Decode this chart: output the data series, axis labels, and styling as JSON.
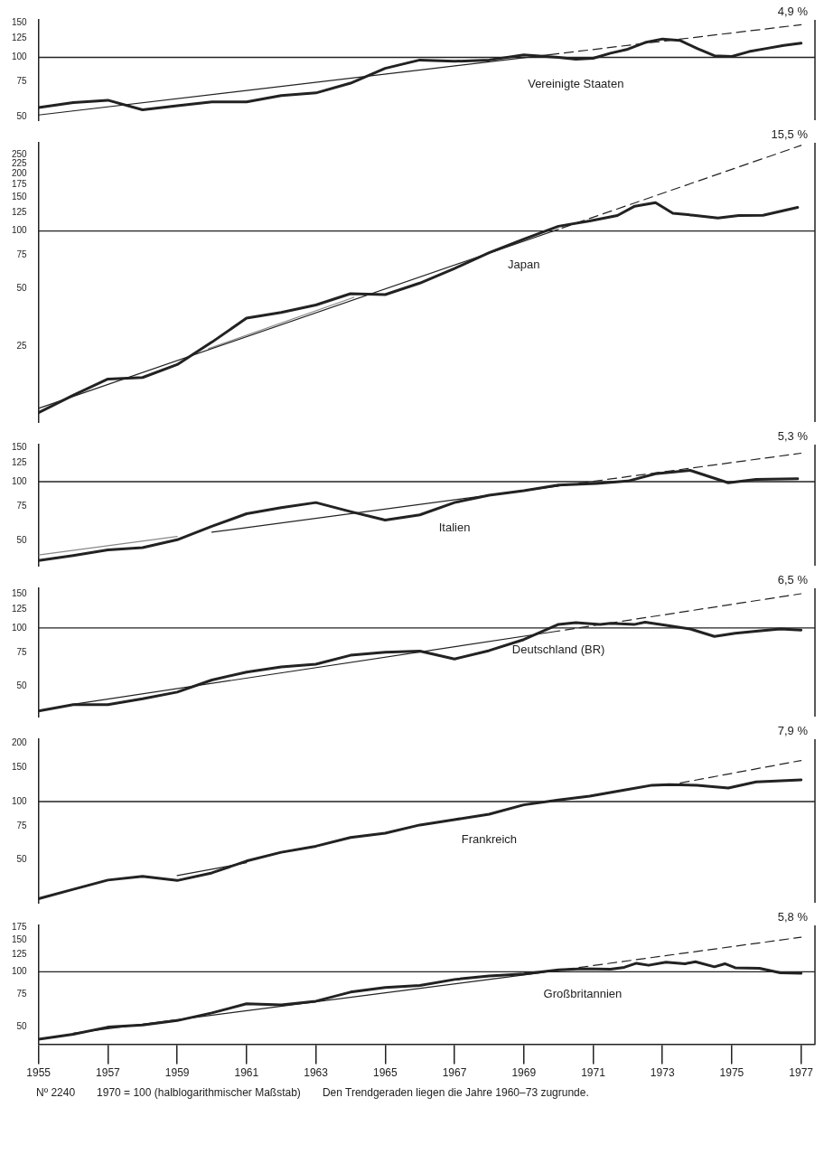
{
  "chart_data": [
    {
      "type": "line",
      "log": true,
      "tick_labels": "y",
      "xlim": [
        1955,
        1977.4
      ],
      "ylim": [
        48,
        155
      ],
      "yticks": [
        50,
        75,
        100,
        125,
        150
      ],
      "ref_lines": [
        {
          "axis": "y",
          "value": 100,
          "color": "#222222"
        }
      ],
      "annotations": [
        "4,9 %"
      ],
      "series": [
        {
          "name": "Vereinigte Staaten",
          "color": "#222222",
          "x": [
            1955,
            1956,
            1957,
            1958,
            1959,
            1960,
            1961,
            1962,
            1963,
            1964,
            1965,
            1966,
            1967,
            1968,
            1969,
            1970,
            1970.5,
            1971,
            1971.5,
            1972,
            1972.5,
            1973,
            1973.5,
            1974,
            1974.5,
            1975,
            1975.5,
            1976,
            1976.5,
            1977
          ],
          "values": [
            55.6,
            59,
            60.6,
            54.2,
            56.8,
            59.5,
            59.5,
            64,
            66,
            74,
            88,
            97,
            95.5,
            97,
            103,
            100,
            98,
            99,
            105,
            110,
            119,
            124,
            122,
            111,
            102,
            101,
            107,
            111,
            115,
            118
          ]
        },
        {
          "color": "#222222",
          "line_style": "solid",
          "x": [
            1955,
            1970
          ],
          "values": [
            51,
            104.5
          ]
        },
        {
          "color": "#222222",
          "line_style": "dashed",
          "x": [
            1970,
            1977
          ],
          "values": [
            104.5,
            146.5
          ]
        }
      ]
    },
    {
      "type": "line",
      "log": true,
      "tick_labels": "y",
      "xlim": [
        1955,
        1977.4
      ],
      "ylim": [
        10,
        290
      ],
      "yticks": [
        25,
        50,
        75,
        100,
        125,
        150,
        175,
        200,
        225,
        250
      ],
      "ref_lines": [
        {
          "axis": "y",
          "value": 100,
          "color": "#222222"
        }
      ],
      "annotations": [
        "15,5 %"
      ],
      "series": [
        {
          "name": "Japan",
          "color": "#222222",
          "x": [
            1955,
            1956,
            1957,
            1958,
            1959,
            1960,
            1961,
            1962,
            1963,
            1964,
            1965,
            1966,
            1967,
            1968,
            1969,
            1970,
            1970.9,
            1971.7,
            1972.2,
            1972.8,
            1973.3,
            1973.9,
            1974.6,
            1975.2,
            1975.9,
            1976.9
          ],
          "values": [
            11.2,
            13.8,
            16.8,
            17.1,
            20,
            26.2,
            35,
            37.5,
            41,
            47,
            46.5,
            53.4,
            63.7,
            77,
            90.7,
            106,
            113,
            120.6,
            135,
            141,
            124,
            121,
            117,
            120.6,
            121,
            133
          ]
        },
        {
          "color": "#222222",
          "line_style": "solid",
          "x": [
            1955,
            1970
          ],
          "values": [
            11.8,
            102.2
          ]
        },
        {
          "color": "#222222",
          "line_style": "dashed",
          "x": [
            1970,
            1977
          ],
          "values": [
            102.2,
            281
          ]
        },
        {
          "color": "#888888",
          "line_style": "solid",
          "x": [
            1959.9,
            1964.1
          ],
          "values": [
            24.2,
            45
          ]
        }
      ]
    },
    {
      "type": "line",
      "log": true,
      "tick_labels": "y",
      "xlim": [
        1955,
        1977.4
      ],
      "ylim": [
        37,
        155
      ],
      "yticks": [
        50,
        75,
        100,
        125,
        150
      ],
      "ref_lines": [
        {
          "axis": "y",
          "value": 100,
          "color": "#222222"
        }
      ],
      "annotations": [
        "5,3 %"
      ],
      "series": [
        {
          "name": "Italien",
          "color": "#222222",
          "x": [
            1955,
            1956,
            1957,
            1958,
            1959,
            1960,
            1961,
            1962,
            1963,
            1964,
            1965,
            1966,
            1967,
            1968,
            1969,
            1970,
            1971.1,
            1972,
            1972.8,
            1973.8,
            1974.9,
            1975.7,
            1976.9
          ],
          "values": [
            39.3,
            41.7,
            44.6,
            45.8,
            50.3,
            59,
            68.4,
            73.5,
            78.1,
            70.2,
            63.5,
            67.5,
            78.1,
            85.2,
            89.9,
            96.1,
            98,
            100.7,
            109.8,
            114.3,
            98.7,
            102.7,
            103.4
          ]
        },
        {
          "color": "#222222",
          "line_style": "solid",
          "x": [
            1960,
            1970
          ],
          "values": [
            55,
            95
          ]
        },
        {
          "color": "#222222",
          "line_style": "dashed",
          "x": [
            1970,
            1977
          ],
          "values": [
            95,
            140
          ]
        },
        {
          "color": "#888888",
          "line_style": "solid",
          "x": [
            1955,
            1959
          ],
          "values": [
            42,
            52.3
          ]
        }
      ]
    },
    {
      "type": "line",
      "log": true,
      "tick_labels": "y",
      "xlim": [
        1955,
        1977.4
      ],
      "ylim": [
        35,
        160
      ],
      "yticks": [
        50,
        75,
        100,
        125,
        150
      ],
      "ref_lines": [
        {
          "axis": "y",
          "value": 100,
          "color": "#222222"
        }
      ],
      "annotations": [
        "6,5 %"
      ],
      "series": [
        {
          "name": "Deutschland (BR)",
          "color": "#222222",
          "x": [
            1955,
            1956,
            1957,
            1958,
            1959,
            1960,
            1961,
            1962,
            1963,
            1964,
            1965,
            1966,
            1967,
            1968,
            1969,
            1970,
            1970.5,
            1971.2,
            1971.5,
            1972.2,
            1972.5,
            1973.2,
            1973.8,
            1974.5,
            1975.1,
            1975.7,
            1976.4,
            1977
          ],
          "values": [
            37.4,
            40.3,
            40.3,
            43.2,
            46.8,
            54,
            59.3,
            63.1,
            65.1,
            72.4,
            75.1,
            76.1,
            69.3,
            76.5,
            87.2,
            104.4,
            106.4,
            104.4,
            105.8,
            104.4,
            107.1,
            102.5,
            98.8,
            90.5,
            94,
            96.3,
            98.8,
            97.5
          ]
        },
        {
          "color": "#222222",
          "line_style": "solid",
          "x": [
            1956,
            1970
          ],
          "values": [
            40.5,
            96.5
          ]
        },
        {
          "color": "#222222",
          "line_style": "dashed",
          "x": [
            1970,
            1977
          ],
          "values": [
            96.5,
            150
          ]
        }
      ]
    },
    {
      "type": "line",
      "log": true,
      "tick_labels": "y",
      "xlim": [
        1955,
        1977.4
      ],
      "ylim": [
        30,
        210
      ],
      "yticks": [
        50,
        75,
        100,
        150,
        200
      ],
      "ref_lines": [
        {
          "axis": "y",
          "value": 100,
          "color": "#222222"
        }
      ],
      "annotations": [
        "7,9 %"
      ],
      "series": [
        {
          "name": "Frankreich",
          "color": "#222222",
          "x": [
            1955,
            1956,
            1957,
            1958,
            1959,
            1960,
            1961,
            1962,
            1963,
            1964,
            1965,
            1966,
            1967,
            1968,
            1969,
            1970,
            1970.9,
            1971.9,
            1972.7,
            1973.2,
            1974,
            1974.9,
            1975.7,
            1977
          ],
          "values": [
            31.5,
            35.2,
            39.3,
            41.1,
            39.1,
            42.8,
            49.3,
            54.7,
            58.8,
            65.2,
            68.7,
            75.7,
            80.7,
            86.1,
            96.2,
            102,
            106.7,
            114.6,
            121.5,
            122.3,
            121.5,
            117.6,
            126.3,
            129.6
          ]
        },
        {
          "color": "#222222",
          "line_style": "solid",
          "x": [
            1959,
            1961
          ],
          "values": [
            41.5,
            48.3
          ]
        },
        {
          "color": "#222222",
          "line_style": "dashed",
          "x": [
            1973,
            1977
          ],
          "values": [
            120,
            163
          ]
        }
      ]
    },
    {
      "type": "line",
      "log": true,
      "xlim": [
        1955,
        1977.4
      ],
      "xticks": [
        1955,
        1957,
        1959,
        1961,
        1963,
        1965,
        1967,
        1969,
        1971,
        1973,
        1975,
        1977
      ],
      "ylim": [
        40,
        180
      ],
      "yticks": [
        50,
        75,
        100,
        125,
        150,
        175
      ],
      "ref_lines": [
        {
          "axis": "y",
          "value": 100,
          "color": "#222222"
        }
      ],
      "annotations": [
        "5,8 %",
        "Nº 2240",
        "1970 = 100 (halblogarithmischer Maßstab)",
        "Den Trendgeraden liegen die Jahre 1960–73 zugrunde."
      ],
      "series": [
        {
          "name": "Großbritannien",
          "color": "#222222",
          "x": [
            1955,
            1956,
            1957,
            1958,
            1959,
            1960,
            1961,
            1962,
            1963,
            1964,
            1965,
            1966,
            1967,
            1968,
            1969,
            1970,
            1970.7,
            1971.5,
            1971.9,
            1972.25,
            1972.6,
            1973.1,
            1973.65,
            1973.95,
            1974.5,
            1974.8,
            1975.1,
            1975.8,
            1976.4,
            1977
          ],
          "values": [
            42.6,
            45.4,
            49.7,
            51,
            54,
            59.5,
            66.8,
            65.9,
            69,
            77.4,
            82,
            84.1,
            90.8,
            95,
            97.5,
            102.6,
            103.9,
            103.3,
            105.9,
            111.5,
            108.7,
            113,
            110.8,
            113.7,
            106.6,
            110.8,
            105.3,
            104.6,
            98.7,
            98.1
          ]
        },
        {
          "color": "#222222",
          "line_style": "solid",
          "x": [
            1956,
            1969.5
          ],
          "values": [
            46,
            99
          ]
        },
        {
          "color": "#222222",
          "line_style": "dashed",
          "x": [
            1969.5,
            1977
          ],
          "values": [
            99,
            155
          ]
        }
      ]
    }
  ]
}
